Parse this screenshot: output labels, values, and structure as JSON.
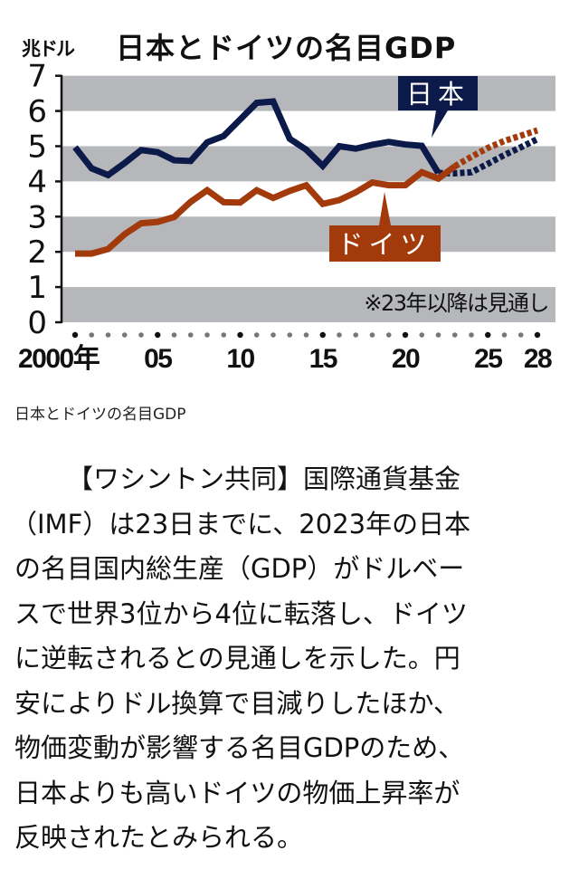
{
  "chart": {
    "unit_label": "兆ドル",
    "title": "日本とドイツの名目GDP",
    "note": "※23年以降は見通し",
    "japan_label": "日本",
    "germany_label": "ドイツ",
    "x_tick_labels": [
      "2000年",
      "05",
      "10",
      "15",
      "20",
      "25",
      "28"
    ],
    "y_tick_labels": [
      "0",
      "1",
      "2",
      "3",
      "4",
      "5",
      "6",
      "7"
    ],
    "colors": {
      "japan": "#0c1a4a",
      "germany": "#a33a0c",
      "band": "#b5b7bb",
      "axis": "#111111",
      "dot_major": "#111111",
      "dot_minor": "#777777"
    }
  },
  "caption": "日本とドイツの名目GDP",
  "article": {
    "lines": [
      "【ワシントン共同】国際通貨基金",
      "（IMF）は23日までに、2023年の日本",
      "の名目国内総生産（GDP）がドルベー",
      "スで世界3位から4位に転落し、ドイツ",
      "に逆転されるとの見通しを示した。円",
      "安によりドル換算で目減りしたほか、",
      "物価変動が影響する名目GDPのため、",
      "日本よりも高いドイツの物価上昇率が",
      "反映されたとみられる。"
    ]
  },
  "chart_data": {
    "type": "line",
    "title": "日本とドイツの名目GDP",
    "xlabel": "",
    "ylabel": "兆ドル",
    "ylim": [
      0,
      7
    ],
    "xlim": [
      2000,
      2028
    ],
    "grid": "alternating horizontal bands",
    "legend_position": "inline callouts",
    "annotations": [
      "※23年以降は見通し"
    ],
    "x": [
      2000,
      2001,
      2002,
      2003,
      2004,
      2005,
      2006,
      2007,
      2008,
      2009,
      2010,
      2011,
      2012,
      2013,
      2014,
      2015,
      2016,
      2017,
      2018,
      2019,
      2020,
      2021,
      2022,
      2023,
      2024,
      2025,
      2026,
      2027,
      2028
    ],
    "forecast_from": 2023,
    "series": [
      {
        "name": "日本",
        "values": [
          4.97,
          4.37,
          4.18,
          4.52,
          4.89,
          4.83,
          4.6,
          4.58,
          5.11,
          5.29,
          5.76,
          6.23,
          6.27,
          5.21,
          4.9,
          4.44,
          5.0,
          4.93,
          5.04,
          5.12,
          5.05,
          5.01,
          4.24,
          4.23,
          4.26,
          4.5,
          4.75,
          4.97,
          5.2
        ]
      },
      {
        "name": "ドイツ",
        "values": [
          1.95,
          1.95,
          2.08,
          2.5,
          2.81,
          2.85,
          2.99,
          3.42,
          3.75,
          3.41,
          3.4,
          3.75,
          3.53,
          3.73,
          3.89,
          3.36,
          3.47,
          3.69,
          3.97,
          3.89,
          3.89,
          4.26,
          4.08,
          4.43,
          4.7,
          4.95,
          5.15,
          5.3,
          5.45
        ]
      }
    ]
  }
}
